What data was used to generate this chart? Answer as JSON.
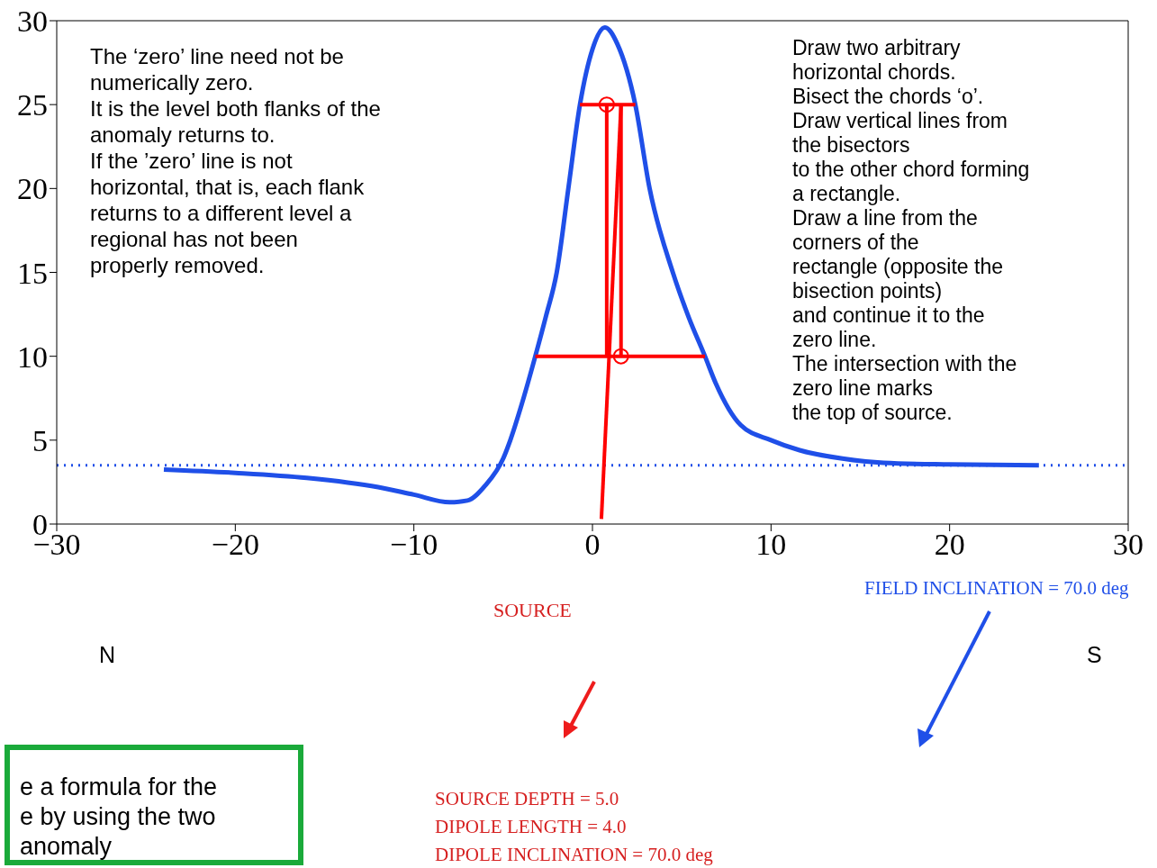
{
  "chart_data": {
    "type": "line",
    "xlim": [
      -30,
      30
    ],
    "xticks": [
      -30,
      -20,
      -10,
      0,
      10,
      20,
      30
    ],
    "ylim": [
      0,
      30
    ],
    "yticks": [
      0,
      5,
      10,
      15,
      20,
      25,
      30
    ],
    "series": [
      {
        "type": "line",
        "color": "#1f4fe8",
        "x": [
          -24,
          -20,
          -16,
          -12,
          -10,
          -8,
          -7,
          -6,
          -5,
          -4.6,
          -4,
          -3.2,
          -2.6,
          -2.0,
          -1.35,
          -0.7,
          0,
          0.7,
          1.4,
          2.4,
          3.2,
          4.5,
          5.4,
          6.3,
          6.9,
          8.3,
          10,
          11.6,
          14,
          16.3,
          20,
          25
        ],
        "values": [
          3.25,
          3.05,
          2.75,
          2.2,
          1.75,
          1.3,
          1.4,
          2.3,
          3.9,
          5,
          7,
          10,
          12.4,
          15,
          20,
          25,
          28.3,
          29.6,
          28.6,
          25,
          20,
          15,
          12.3,
          10,
          8.4,
          5.9,
          5.0,
          4.4,
          3.9,
          3.65,
          3.55,
          3.5
        ]
      },
      {
        "type": "line",
        "color": "#ff0000",
        "x": [
          -0.7,
          2.4
        ],
        "values": [
          25,
          25
        ]
      },
      {
        "type": "line",
        "color": "#ff0000",
        "x": [
          -3.2,
          6.3
        ],
        "values": [
          10,
          10
        ]
      },
      {
        "type": "line",
        "color": "#ff0000",
        "x": [
          0.8,
          0.8
        ],
        "values": [
          25,
          10
        ]
      },
      {
        "type": "line",
        "color": "#ff0000",
        "x": [
          1.6,
          1.6
        ],
        "values": [
          10,
          25
        ]
      },
      {
        "type": "line",
        "color": "#ff0000",
        "x": [
          1.6,
          0.5
        ],
        "values": [
          25,
          0.3
        ]
      },
      {
        "type": "scatter",
        "marker": "circle",
        "color": "#ff0000",
        "x": [
          0.8,
          1.6
        ],
        "values": [
          25,
          10
        ]
      }
    ],
    "ref_lines": [
      {
        "axis": "y",
        "value": 3.5,
        "color": "#1f4fe8",
        "line_style": "dotted"
      }
    ],
    "annotations": [
      "The ‘zero’ line need not be\nnumerically zero.\nIt is the level both flanks of the\nanomaly returns to.\nIf the ’zero’ line is not\nhorizontal, that is, each flank\nreturns to a different level a\nregional has not been\nproperly removed.",
      "Draw two arbitrary\nhorizontal chords.\nBisect the chords ‘o’.\nDraw vertical lines from\nthe bisectors\nto the other chord forming\na rectangle.\nDraw a line from the\ncorners of the\nrectangle (opposite the\nbisection points)\nand continue it to the\nzero line.\nThe intersection with the\nzero line marks\nthe top of source.",
      "SOURCE",
      "FIELD INCLINATION = 70.0 deg",
      "N",
      "S",
      "SOURCE DEPTH = 5.0\nDIPOLE LENGTH = 4.0\nDIPOLE INCLINATION = 70.0 deg",
      "e a formula for the\ne by using the two\nanomaly"
    ]
  }
}
